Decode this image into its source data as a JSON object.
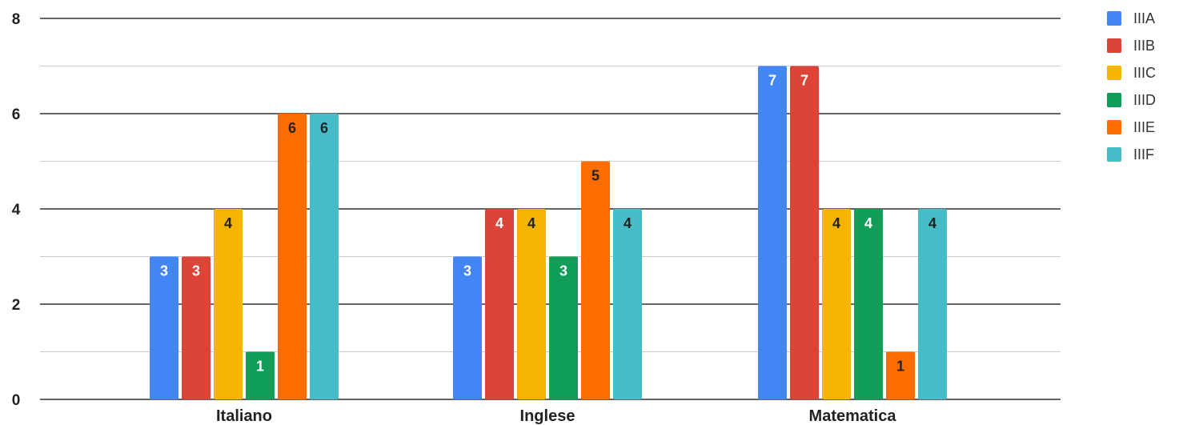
{
  "chart_data": {
    "type": "bar",
    "title": "",
    "xlabel": "",
    "ylabel": "",
    "ylim": [
      0,
      8
    ],
    "yticks": [
      0,
      2,
      4,
      6,
      8
    ],
    "grid": true,
    "legend_position": "right",
    "categories": [
      "Italiano",
      "Inglese",
      "Matematica"
    ],
    "series": [
      {
        "name": "IIIA",
        "color": "#4285F4",
        "label_color": "#ffffff",
        "values": [
          3,
          3,
          7
        ]
      },
      {
        "name": "IIIB",
        "color": "#DB4437",
        "label_color": "#ffffff",
        "values": [
          3,
          4,
          7
        ]
      },
      {
        "name": "IIIC",
        "color": "#F4B400",
        "label_color": "#222222",
        "values": [
          4,
          4,
          4
        ]
      },
      {
        "name": "IIID",
        "color": "#0F9D58",
        "label_color": "#ffffff",
        "values": [
          1,
          3,
          4
        ]
      },
      {
        "name": "IIIE",
        "color": "#FF6D01",
        "label_color": "#222222",
        "values": [
          6,
          5,
          1
        ]
      },
      {
        "name": "IIIF",
        "color": "#46BDC6",
        "label_color": "#222222",
        "values": [
          6,
          4,
          4
        ]
      }
    ]
  }
}
